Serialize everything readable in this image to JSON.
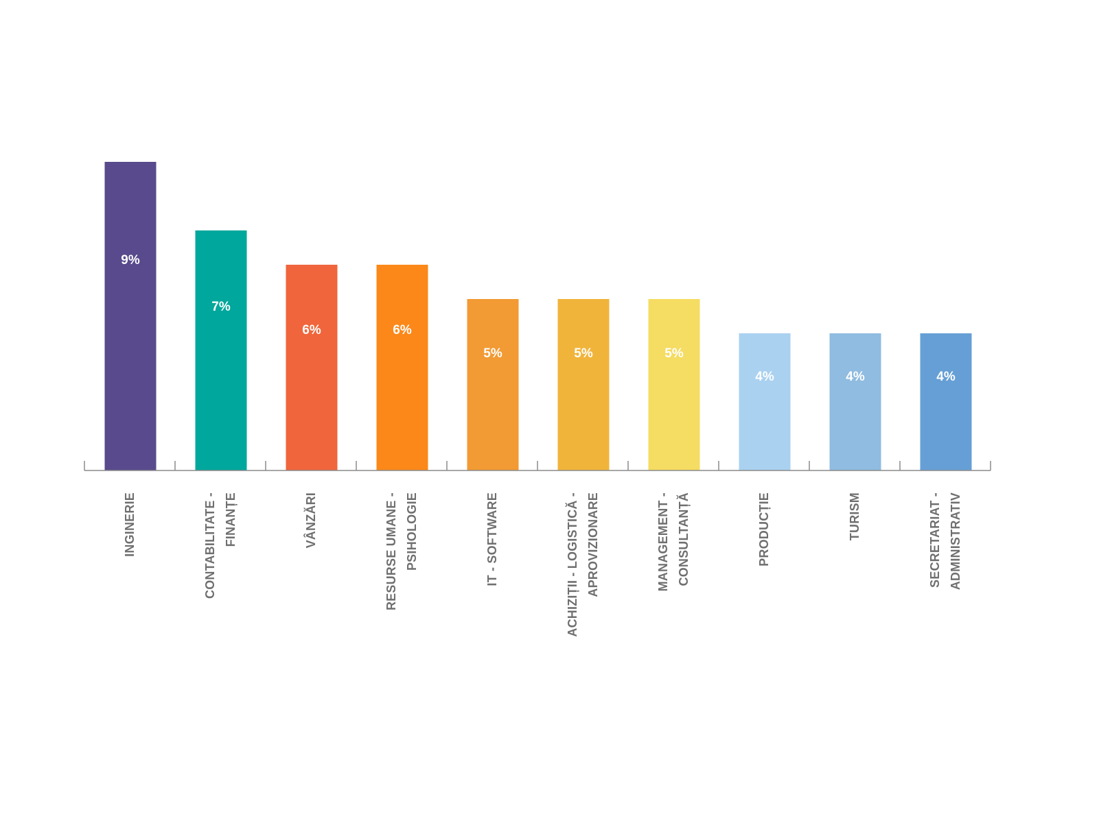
{
  "chart_data": {
    "type": "bar",
    "title": "",
    "xlabel": "",
    "ylabel": "",
    "ylim": [
      0,
      9
    ],
    "grid": false,
    "legend": "none",
    "categories": [
      [
        "INGINERIE"
      ],
      [
        "CONTABILITATE -",
        "FINANȚE"
      ],
      [
        "VÂNZĂRI"
      ],
      [
        "RESURSE UMANE -",
        "PSIHOLOGIE"
      ],
      [
        "IT - SOFTWARE"
      ],
      [
        "ACHIZIȚII - LOGISTICĂ -",
        "APROVIZIONARE"
      ],
      [
        "MANAGEMENT -",
        "CONSULTANȚĂ"
      ],
      [
        "PRODUCȚIE"
      ],
      [
        "TURISM"
      ],
      [
        "SECRETARIAT -",
        "ADMINISTRATIV"
      ]
    ],
    "values": [
      9,
      7,
      6,
      6,
      5,
      5,
      5,
      4,
      4,
      4
    ],
    "data_labels": [
      "9%",
      "7%",
      "6%",
      "6%",
      "5%",
      "5%",
      "5%",
      "4%",
      "4%",
      "4%"
    ],
    "colors": [
      "#584a8c",
      "#00a79c",
      "#f0653b",
      "#fb8819",
      "#f29a33",
      "#f1b43a",
      "#f5dc62",
      "#aad1f0",
      "#8fbce0",
      "#669fd5"
    ]
  }
}
